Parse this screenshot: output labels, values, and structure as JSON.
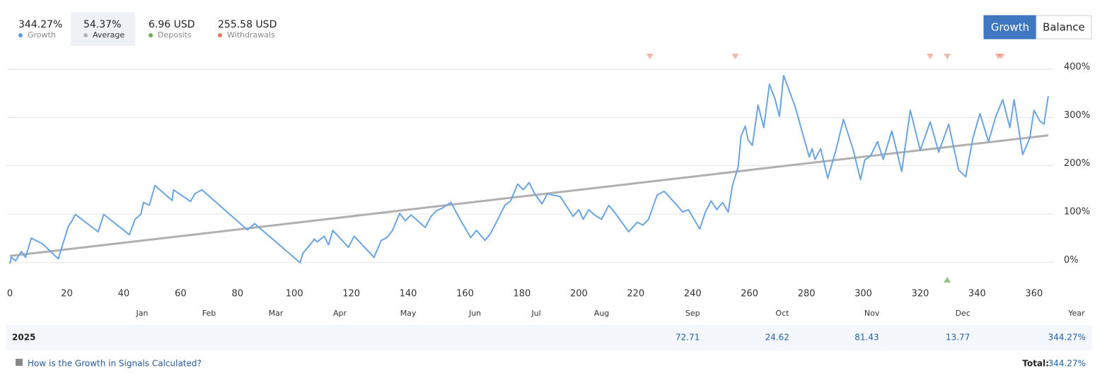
{
  "stats": [
    {
      "value": "344.27%",
      "label": "Growth",
      "color": "#5a9de0"
    },
    {
      "value": "54.37%",
      "label": "Average",
      "color": "#b3b3b3"
    },
    {
      "value": "6.96 USD",
      "label": "Deposits",
      "color": "#6ab04c"
    },
    {
      "value": "255.58 USD",
      "label": "Withdrawals",
      "color": "#e8735a"
    }
  ],
  "tabs": [
    "Growth",
    "Balance"
  ],
  "chart_data": {
    "type": "line",
    "xlim": [
      -1,
      367
    ],
    "ylim": [
      -45,
      400
    ],
    "xticks": [
      0,
      20,
      40,
      60,
      80,
      100,
      120,
      140,
      160,
      180,
      200,
      220,
      240,
      260,
      280,
      300,
      320,
      340,
      360
    ],
    "yticks": [
      {
        "value": 0,
        "label": "0%"
      },
      {
        "value": 100,
        "label": "100%"
      },
      {
        "value": 200,
        "label": "200%"
      },
      {
        "value": 300,
        "label": "300%"
      },
      {
        "value": 400,
        "label": "400%"
      }
    ],
    "grid": true,
    "months": [
      "Jan",
      "Feb",
      "Mar",
      "Apr",
      "May",
      "Jun",
      "Jul",
      "Aug",
      "Sep",
      "Oct",
      "Nov",
      "Dec"
    ],
    "month_positions": [
      46.5,
      70,
      93.5,
      116,
      140,
      163.5,
      185,
      208,
      240,
      271.5,
      303,
      335
    ],
    "series": [
      {
        "name": "Growth",
        "color": "#6aa5e3",
        "x": [
          0,
          0.5,
          2,
          4,
          5.5,
          7.5,
          11.5,
          17,
          20.5,
          21.5,
          23,
          31,
          33,
          42,
          44,
          46,
          47,
          49,
          51,
          57,
          57.5,
          63.5,
          65,
          67.5,
          83.5,
          86,
          102,
          103,
          105.5,
          107,
          108,
          110.5,
          112,
          113.5,
          119,
          121,
          128,
          130.5,
          132.5,
          134.5,
          137,
          139,
          141,
          146,
          148,
          150,
          152,
          155,
          158.5,
          162,
          164,
          167,
          169,
          171.5,
          174,
          176,
          178.5,
          180.5,
          182.5,
          184.5,
          187,
          189,
          191,
          193.5,
          198,
          200,
          201.5,
          203.5,
          205.5,
          208,
          210.5,
          212.5,
          217.5,
          220.5,
          222.5,
          224.5,
          227.5,
          230,
          234.5,
          236.5,
          238.5,
          242.5,
          244.5,
          246.5,
          248.5,
          250.5,
          252.5,
          254,
          256,
          257,
          258.5,
          259.5,
          261,
          263,
          265,
          267,
          269,
          270.5,
          272,
          276,
          281,
          282,
          283,
          285,
          287.5,
          290.5,
          293,
          296.5,
          299,
          300.5,
          302.5,
          305,
          307,
          310,
          313.5,
          316.5,
          320,
          323.5,
          326.5,
          330,
          333.5,
          336,
          338.5,
          341,
          344,
          346.5,
          349,
          351.5,
          353,
          356,
          358.5,
          360,
          362,
          363.5,
          365
        ],
        "values": [
          -3,
          10,
          3,
          22,
          10,
          50,
          38,
          7,
          74,
          83,
          99,
          63,
          99,
          57,
          89,
          99,
          124,
          118,
          159,
          128,
          150,
          126,
          142,
          150,
          67,
          80,
          -1,
          19,
          36,
          48,
          42,
          54,
          36,
          66,
          31,
          54,
          10,
          45,
          51,
          66,
          101,
          86,
          98,
          72,
          95,
          107,
          112,
          124,
          86,
          51,
          66,
          45,
          60,
          89,
          118,
          127,
          162,
          150,
          165,
          142,
          121,
          142,
          139,
          136,
          95,
          109,
          89,
          109,
          98,
          89,
          118,
          104,
          63,
          83,
          77,
          89,
          139,
          147,
          118,
          104,
          109,
          69,
          104,
          127,
          109,
          124,
          104,
          159,
          197,
          261,
          282,
          253,
          242,
          326,
          279,
          369,
          337,
          302,
          387,
          323,
          218,
          235,
          213,
          235,
          174,
          235,
          296,
          232,
          171,
          212,
          220,
          250,
          213,
          272,
          188,
          315,
          232,
          291,
          228,
          286,
          191,
          177,
          257,
          308,
          250,
          301,
          337,
          279,
          337,
          223,
          257,
          315,
          293,
          286,
          344.27
        ]
      },
      {
        "name": "Average",
        "color": "#b0b0b0",
        "x": [
          0,
          365
        ],
        "values": [
          13,
          263
        ]
      }
    ],
    "withdrawal_markers": {
      "color": "#e8735a",
      "x": [
        225,
        255,
        323.5,
        329.5,
        347.5,
        348.5
      ]
    },
    "deposit_markers": {
      "color": "#8cc97c",
      "x": [
        329.5
      ]
    }
  },
  "yearly_table": {
    "year": "2025",
    "values": [
      null,
      null,
      null,
      null,
      null,
      null,
      null,
      null,
      72.71,
      24.62,
      81.43,
      13.77
    ],
    "total_header": "Year",
    "total": "344.27%"
  },
  "footer": {
    "help_link": "How is the Growth in Signals Calculated?",
    "total_label": "Total:",
    "total_value": "344.27%"
  }
}
